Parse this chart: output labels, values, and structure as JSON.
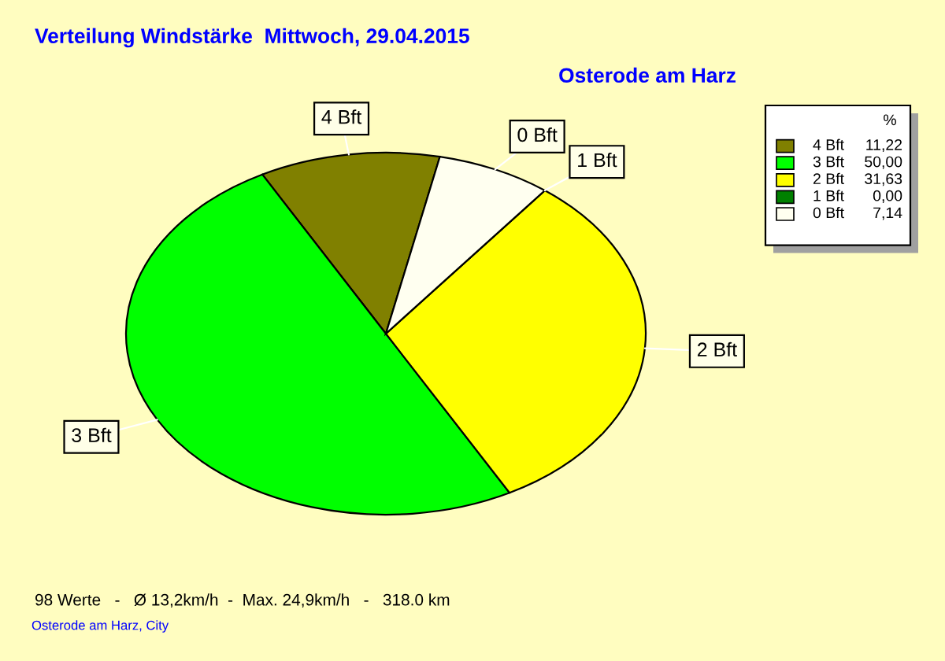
{
  "chart_data": {
    "type": "pie",
    "title": "Verteilung Windstärke  Mittwoch, 29.04.2015",
    "subtitle": "Osterode am Harz",
    "categories": [
      "4 Bft",
      "3 Bft",
      "2 Bft",
      "1 Bft",
      "0 Bft"
    ],
    "values": [
      11.22,
      50.0,
      31.63,
      0.0,
      7.14
    ],
    "value_labels": [
      "11,22",
      "50,00",
      "31,63",
      "0,00",
      "7,14"
    ],
    "colors": [
      "#808000",
      "#00ff00",
      "#ffff00",
      "#008000",
      "#fffff0"
    ],
    "legend": "top right",
    "legend_title": "%",
    "annotations": [
      "98 Werte   -   Ø 13,2km/h  -  Max. 24,9km/h   -   318.0 km",
      "Osterode am Harz, City"
    ]
  }
}
